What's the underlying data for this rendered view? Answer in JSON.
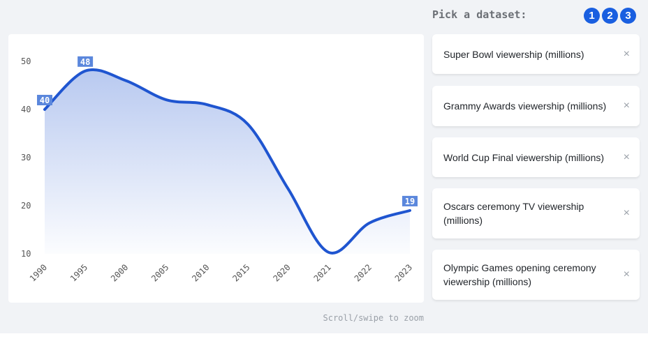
{
  "chart_data": {
    "type": "area",
    "categories": [
      "1990",
      "1995",
      "2000",
      "2005",
      "2010",
      "2015",
      "2020",
      "2021",
      "2022",
      "2023"
    ],
    "values": [
      40,
      48,
      46,
      42,
      41,
      37,
      23.5,
      10.3,
      16.4,
      19
    ],
    "data_labels": [
      {
        "index": 0,
        "text": "40"
      },
      {
        "index": 1,
        "text": "48"
      },
      {
        "index": 9,
        "text": "19"
      }
    ],
    "yticks": [
      "10",
      "20",
      "30",
      "40",
      "50"
    ],
    "ylim": [
      10,
      50
    ],
    "grid": false,
    "line_color": "#1f55d0",
    "fill_color": "#b8c9f0",
    "label_bg": "#5b87dc"
  },
  "hint": "Scroll/swipe to zoom",
  "sidebar": {
    "title": "Pick a dataset:",
    "pages": [
      "1",
      "2",
      "3"
    ],
    "datasets": [
      {
        "label": "Super Bowl viewership (millions)"
      },
      {
        "label": "Grammy Awards viewership (millions)"
      },
      {
        "label": "World Cup Final viewership (millions)"
      },
      {
        "label": "Oscars ceremony TV viewership (millions)"
      },
      {
        "label": "Olympic Games opening ceremony viewership (millions)"
      }
    ],
    "close_glyph": "×"
  }
}
